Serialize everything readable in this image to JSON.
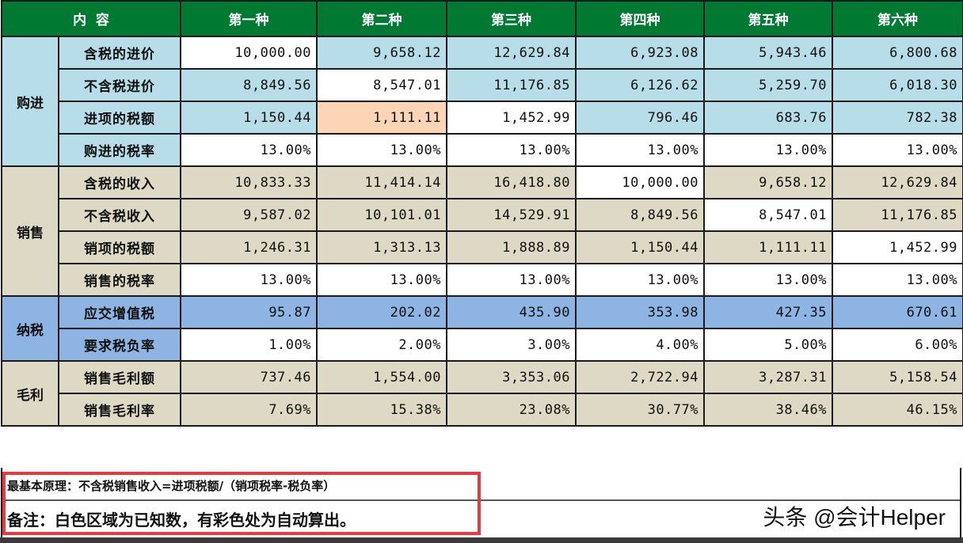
{
  "colors": {
    "header": "#007a33",
    "white": "#ffffff",
    "lightblue": "#b7dde8",
    "tan": "#ddd9c4",
    "blue": "#8db4e2",
    "orange": "#fcd5b4",
    "highlight_box": "#e8393e"
  },
  "header": {
    "content_label": "内  容",
    "columns": [
      "第一种",
      "第二种",
      "第三种",
      "第四种",
      "第五种",
      "第六种"
    ]
  },
  "groups": [
    {
      "label": "购进",
      "color": "lightblue",
      "rows": [
        {
          "label": "含税的进价",
          "values": [
            "10,000.00",
            "9,658.12",
            "12,629.84",
            "6,923.08",
            "5,943.46",
            "6,800.68"
          ],
          "fills": [
            "white",
            "lightblue",
            "lightblue",
            "lightblue",
            "lightblue",
            "lightblue"
          ]
        },
        {
          "label": "不含税进价",
          "values": [
            "8,849.56",
            "8,547.01",
            "11,176.85",
            "6,126.62",
            "5,259.70",
            "6,018.30"
          ],
          "fills": [
            "lightblue",
            "white",
            "lightblue",
            "lightblue",
            "lightblue",
            "lightblue"
          ]
        },
        {
          "label": "进项的税额",
          "values": [
            "1,150.44",
            "1,111.11",
            "1,452.99",
            "796.46",
            "683.76",
            "782.38"
          ],
          "fills": [
            "lightblue",
            "orange",
            "white",
            "lightblue",
            "lightblue",
            "lightblue"
          ]
        },
        {
          "label": "购进的税率",
          "values": [
            "13.00%",
            "13.00%",
            "13.00%",
            "13.00%",
            "13.00%",
            "13.00%"
          ],
          "fills": [
            "white",
            "white",
            "white",
            "white",
            "white",
            "white"
          ]
        }
      ]
    },
    {
      "label": "销售",
      "color": "tan",
      "rows": [
        {
          "label": "含税的收入",
          "values": [
            "10,833.33",
            "11,414.14",
            "16,418.80",
            "10,000.00",
            "9,658.12",
            "12,629.84"
          ],
          "fills": [
            "tan",
            "tan",
            "tan",
            "white",
            "tan",
            "tan"
          ]
        },
        {
          "label": "不含税收入",
          "values": [
            "9,587.02",
            "10,101.01",
            "14,529.91",
            "8,849.56",
            "8,547.01",
            "11,176.85"
          ],
          "fills": [
            "tan",
            "tan",
            "tan",
            "tan",
            "white",
            "tan"
          ]
        },
        {
          "label": "销项的税额",
          "values": [
            "1,246.31",
            "1,313.13",
            "1,888.89",
            "1,150.44",
            "1,111.11",
            "1,452.99"
          ],
          "fills": [
            "tan",
            "tan",
            "tan",
            "tan",
            "tan",
            "white"
          ]
        },
        {
          "label": "销售的税率",
          "values": [
            "13.00%",
            "13.00%",
            "13.00%",
            "13.00%",
            "13.00%",
            "13.00%"
          ],
          "fills": [
            "white",
            "white",
            "white",
            "white",
            "white",
            "white"
          ]
        }
      ]
    },
    {
      "label": "纳税",
      "color": "blue",
      "rows": [
        {
          "label": "应交增值税",
          "values": [
            "95.87",
            "202.02",
            "435.90",
            "353.98",
            "427.35",
            "670.61"
          ],
          "fills": [
            "blue",
            "blue",
            "blue",
            "blue",
            "blue",
            "blue"
          ]
        },
        {
          "label": "要求税负率",
          "values": [
            "1.00%",
            "2.00%",
            "3.00%",
            "4.00%",
            "5.00%",
            "6.00%"
          ],
          "fills": [
            "white",
            "white",
            "white",
            "white",
            "white",
            "white"
          ]
        }
      ]
    },
    {
      "label": "毛利",
      "color": "tan",
      "rows": [
        {
          "label": "销售毛利额",
          "values": [
            "737.46",
            "1,554.00",
            "3,353.06",
            "2,722.94",
            "3,287.31",
            "5,158.54"
          ],
          "fills": [
            "tan",
            "tan",
            "tan",
            "tan",
            "tan",
            "tan"
          ]
        },
        {
          "label": "销售毛利率",
          "values": [
            "7.69%",
            "15.38%",
            "23.08%",
            "30.77%",
            "38.46%",
            "46.15%"
          ],
          "fills": [
            "tan",
            "tan",
            "tan",
            "tan",
            "tan",
            "tan"
          ]
        }
      ]
    }
  ],
  "notes": {
    "principle": "最基本原理：不含税销售收入=进项税额/（销项税率-税负率）",
    "remark": "备注：白色区域为已知数，有彩色处为自动算出。"
  },
  "watermark": "头条 @会计Helper"
}
